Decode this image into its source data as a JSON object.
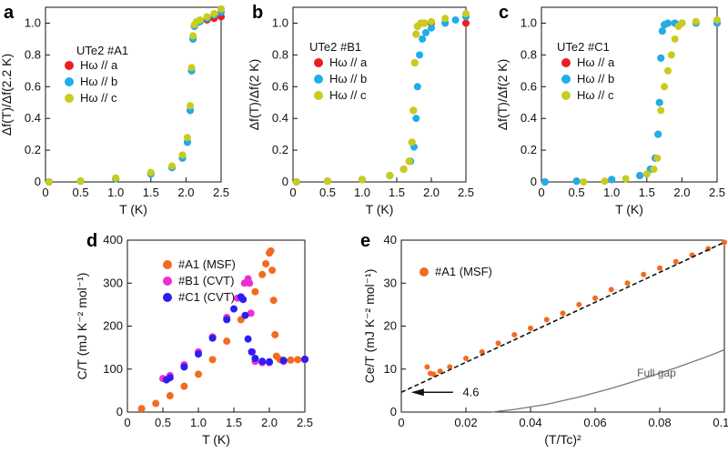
{
  "panels": {
    "a": "a",
    "b": "b",
    "c": "c",
    "d": "d",
    "e": "e"
  },
  "colors": {
    "a_axis": "#ee1c25",
    "b_axis": "#1eaee9",
    "c_axis": "#c8cc1c",
    "A1": "#f26b21",
    "B1": "#ee2fcf",
    "C1": "#2a1ff0",
    "dashed": "#111111",
    "fullgap": "#777777"
  },
  "chart_data": [
    {
      "id": "a",
      "type": "scatter",
      "sample_label": "UTe2 #A1",
      "xlabel": "T (K)",
      "ylabel": "Δf(T)/Δf(2.2 K)",
      "xlim": [
        0,
        2.5
      ],
      "ylim": [
        0,
        1.1
      ],
      "xticks": [
        "0",
        "0.5",
        "1.0",
        "1.5",
        "2.0",
        "2.5"
      ],
      "yticks": [
        "0",
        "0.2",
        "0.4",
        "0.6",
        "0.8",
        "1.0"
      ],
      "series": [
        {
          "name": "Hω // a",
          "color": "#ee1c25",
          "x": [
            0.05,
            0.5,
            1.0,
            1.5,
            1.8,
            1.95,
            2.02,
            2.06,
            2.08,
            2.1,
            2.12,
            2.15,
            2.2,
            2.3,
            2.4,
            2.5
          ],
          "y": [
            0.0,
            0.005,
            0.02,
            0.05,
            0.09,
            0.15,
            0.25,
            0.45,
            0.7,
            0.9,
            0.98,
            1.0,
            1.01,
            1.02,
            1.03,
            1.04
          ]
        },
        {
          "name": "Hω // b",
          "color": "#1eaee9",
          "x": [
            0.05,
            0.5,
            1.0,
            1.5,
            1.8,
            1.95,
            2.02,
            2.06,
            2.08,
            2.1,
            2.12,
            2.15,
            2.2,
            2.3,
            2.4,
            2.5
          ],
          "y": [
            0.0,
            0.005,
            0.02,
            0.05,
            0.09,
            0.15,
            0.25,
            0.45,
            0.7,
            0.9,
            0.98,
            1.0,
            1.01,
            1.03,
            1.05,
            1.07
          ]
        },
        {
          "name": "Hω // c",
          "color": "#c8cc1c",
          "x": [
            0.05,
            0.5,
            1.0,
            1.5,
            1.8,
            1.95,
            2.02,
            2.06,
            2.08,
            2.1,
            2.12,
            2.15,
            2.2,
            2.3,
            2.4,
            2.5
          ],
          "y": [
            0.0,
            0.006,
            0.025,
            0.06,
            0.1,
            0.17,
            0.28,
            0.48,
            0.72,
            0.92,
            0.99,
            1.01,
            1.02,
            1.04,
            1.06,
            1.09
          ]
        }
      ]
    },
    {
      "id": "b",
      "type": "scatter",
      "sample_label": "UTe2 #B1",
      "xlabel": "T (K)",
      "ylabel": "Δf(T)/Δf(2 K)",
      "xlim": [
        0,
        2.5
      ],
      "ylim": [
        0,
        1.1
      ],
      "xticks": [
        "0",
        "0.5",
        "1.0",
        "1.5",
        "2.0",
        "2.5"
      ],
      "yticks": [
        "0",
        "0.2",
        "0.4",
        "0.6",
        "0.8",
        "1.0"
      ],
      "series": [
        {
          "name": "Hω // a",
          "color": "#ee1c25",
          "x": [
            0.05,
            0.5,
            1.0,
            1.4,
            1.6,
            1.68,
            1.72,
            1.74,
            1.76,
            1.78,
            1.8,
            1.85,
            1.9,
            2.0,
            2.2,
            2.5
          ],
          "y": [
            0.0,
            0.005,
            0.015,
            0.04,
            0.08,
            0.13,
            0.25,
            0.45,
            0.75,
            0.93,
            0.98,
            1.0,
            1.0,
            1.0,
            1.0,
            1.0
          ]
        },
        {
          "name": "Hω // b",
          "color": "#1eaee9",
          "x": [
            0.05,
            0.5,
            1.0,
            1.4,
            1.6,
            1.7,
            1.75,
            1.78,
            1.8,
            1.83,
            1.87,
            1.92,
            2.0,
            2.2,
            2.35,
            2.5
          ],
          "y": [
            0.0,
            0.005,
            0.015,
            0.04,
            0.08,
            0.13,
            0.22,
            0.4,
            0.6,
            0.8,
            0.9,
            0.94,
            0.97,
            1.0,
            1.02,
            1.04
          ]
        },
        {
          "name": "Hω // c",
          "color": "#c8cc1c",
          "x": [
            0.05,
            0.5,
            1.0,
            1.4,
            1.6,
            1.68,
            1.72,
            1.74,
            1.76,
            1.78,
            1.8,
            1.85,
            1.9,
            2.0,
            2.2,
            2.5
          ],
          "y": [
            0.0,
            0.005,
            0.015,
            0.04,
            0.08,
            0.13,
            0.25,
            0.45,
            0.75,
            0.93,
            0.98,
            1.0,
            1.0,
            1.01,
            1.03,
            1.06
          ]
        }
      ]
    },
    {
      "id": "c",
      "type": "scatter",
      "sample_label": "UTe2 #C1",
      "xlabel": "T (K)",
      "ylabel": "Δf(T)/Δf(2 K)",
      "xlim": [
        0,
        2.5
      ],
      "ylim": [
        0,
        1.1
      ],
      "xticks": [
        "0",
        "0.5",
        "1.0",
        "1.5",
        "2.0",
        "2.5"
      ],
      "yticks": [
        "0",
        "0.2",
        "0.4",
        "0.6",
        "0.8",
        "1.0"
      ],
      "series": [
        {
          "name": "Hω // a",
          "color": "#ee1c25",
          "x": [
            0.05,
            0.5,
            1.0,
            1.4,
            1.55,
            1.62,
            1.66,
            1.68,
            1.7,
            1.72,
            1.75,
            1.8,
            1.9,
            2.0,
            2.2,
            2.5
          ],
          "y": [
            0.0,
            0.005,
            0.015,
            0.04,
            0.08,
            0.15,
            0.3,
            0.5,
            0.78,
            0.95,
            0.99,
            1.0,
            1.0,
            1.0,
            1.0,
            1.0
          ]
        },
        {
          "name": "Hω // b",
          "color": "#1eaee9",
          "x": [
            0.05,
            0.5,
            1.0,
            1.4,
            1.55,
            1.62,
            1.66,
            1.68,
            1.7,
            1.72,
            1.75,
            1.8,
            1.9,
            2.0,
            2.2,
            2.5
          ],
          "y": [
            0.0,
            0.005,
            0.015,
            0.04,
            0.08,
            0.15,
            0.3,
            0.5,
            0.78,
            0.95,
            0.99,
            1.0,
            1.0,
            1.0,
            1.0,
            1.0
          ]
        },
        {
          "name": "Hω // c",
          "color": "#c8cc1c",
          "x": [
            0.6,
            0.9,
            1.2,
            1.5,
            1.6,
            1.65,
            1.7,
            1.75,
            1.8,
            1.85,
            1.9,
            1.95,
            2.0,
            2.2,
            2.5
          ],
          "y": [
            0.0,
            0.005,
            0.02,
            0.05,
            0.08,
            0.15,
            0.45,
            0.6,
            0.7,
            0.8,
            0.9,
            0.98,
            1.0,
            1.01,
            1.02
          ]
        }
      ]
    },
    {
      "id": "d",
      "type": "scatter",
      "xlabel": "T (K)",
      "ylabel": "C/T (mJ K⁻² mol⁻¹)",
      "xlim": [
        0,
        2.5
      ],
      "ylim": [
        0,
        400
      ],
      "xticks": [
        "0",
        "0.5",
        "1.0",
        "1.5",
        "2.0",
        "2.5"
      ],
      "yticks": [
        "0",
        "100",
        "200",
        "300",
        "400"
      ],
      "legend_position": "top-left",
      "series": [
        {
          "name": "#A1 (MSF)",
          "color": "#f26b21",
          "x": [
            0.2,
            0.4,
            0.6,
            0.8,
            1.0,
            1.2,
            1.4,
            1.6,
            1.8,
            1.9,
            1.95,
            2.0,
            2.02,
            2.04,
            2.06,
            2.08,
            2.1,
            2.15,
            2.2,
            2.3,
            2.4,
            2.5
          ],
          "y": [
            8,
            20,
            38,
            60,
            88,
            122,
            165,
            215,
            280,
            320,
            345,
            370,
            375,
            330,
            260,
            180,
            130,
            122,
            120,
            121,
            122,
            123
          ]
        },
        {
          "name": "#B1 (CVT)",
          "color": "#ee2fcf",
          "x": [
            0.5,
            0.6,
            0.8,
            1.0,
            1.2,
            1.4,
            1.55,
            1.65,
            1.7,
            1.72,
            1.74,
            1.76,
            1.8,
            1.9,
            2.0,
            2.2,
            2.5
          ],
          "y": [
            78,
            85,
            110,
            140,
            175,
            220,
            265,
            300,
            310,
            300,
            230,
            140,
            118,
            115,
            115,
            118,
            122
          ]
        },
        {
          "name": "#C1 (CVT)",
          "color": "#2a1ff0",
          "x": [
            0.55,
            0.6,
            0.8,
            1.0,
            1.2,
            1.4,
            1.5,
            1.6,
            1.63,
            1.66,
            1.7,
            1.75,
            1.8,
            1.9,
            2.0,
            2.2,
            2.5
          ],
          "y": [
            75,
            80,
            105,
            135,
            172,
            215,
            240,
            268,
            262,
            225,
            170,
            140,
            125,
            118,
            117,
            120,
            123
          ]
        }
      ]
    },
    {
      "id": "e",
      "type": "scatter",
      "xlabel": "(T/Tc)²",
      "ylabel": "Ce/T (mJ K⁻² mol⁻¹)",
      "xlim": [
        0,
        0.1
      ],
      "ylim": [
        0,
        40
      ],
      "xticks": [
        "0",
        "0.02",
        "0.04",
        "0.06",
        "0.08",
        "0.10"
      ],
      "yticks": [
        "0",
        "10",
        "20",
        "30",
        "40"
      ],
      "legend_position": "top-left",
      "series": [
        {
          "name": "#A1 (MSF)",
          "color": "#f26b21",
          "x": [
            0.008,
            0.009,
            0.01,
            0.012,
            0.015,
            0.02,
            0.025,
            0.03,
            0.035,
            0.04,
            0.045,
            0.05,
            0.055,
            0.06,
            0.065,
            0.07,
            0.075,
            0.08,
            0.085,
            0.09,
            0.095,
            0.1
          ],
          "y": [
            10.5,
            9.0,
            8.8,
            9.5,
            10.5,
            12.5,
            14.0,
            16.0,
            18.0,
            19.5,
            21.5,
            23.0,
            25.0,
            26.5,
            28.5,
            30.0,
            32.0,
            33.5,
            35.0,
            36.5,
            38.0,
            39.5
          ]
        },
        {
          "name": "fit",
          "color": "#111111",
          "x": [
            0,
            0.1
          ],
          "y": [
            4.6,
            39.5
          ]
        },
        {
          "name": "Full gap",
          "color": "#777777",
          "x": [
            0.028,
            0.035,
            0.045,
            0.055,
            0.065,
            0.075,
            0.085,
            0.095,
            0.1
          ],
          "y": [
            0,
            0.6,
            1.8,
            3.5,
            5.5,
            7.8,
            10.3,
            13.0,
            14.5
          ]
        }
      ],
      "annotations": {
        "intercept": "4.6",
        "full_gap": "Full gap"
      }
    }
  ]
}
